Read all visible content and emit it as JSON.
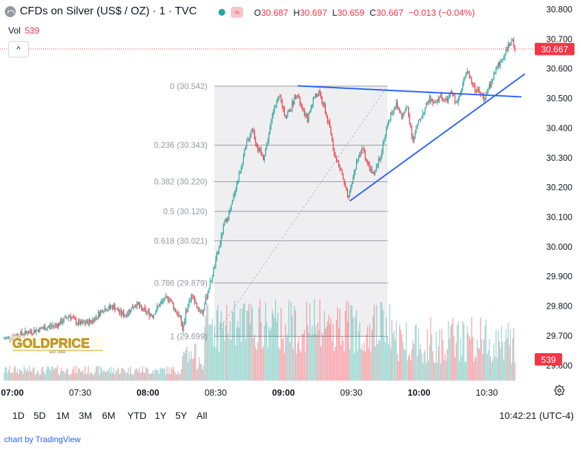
{
  "header": {
    "title": "CFDs on Silver (US$ / OZ) · 1 · TVC",
    "ohlc": [
      {
        "key": "O",
        "value": "30.687"
      },
      {
        "key": "H",
        "value": "30.697"
      },
      {
        "key": "L",
        "value": "30.659"
      },
      {
        "key": "C",
        "value": "30.667"
      }
    ],
    "change": "−0.013 (−0.04%)",
    "badge_icon": "wave-icon"
  },
  "volume": {
    "label": "Vol",
    "value": "539"
  },
  "colors": {
    "up": "#26a69a",
    "down": "#f23645",
    "trendline": "#2962ff",
    "fib": "#787b86"
  },
  "chart_data": {
    "type": "candlestick",
    "y_axis": {
      "ticks": [
        "30.800",
        "30.700",
        "30.600",
        "30.500",
        "30.400",
        "30.300",
        "30.200",
        "30.100",
        "30.000",
        "29.900",
        "29.800",
        "29.700",
        "29.600"
      ],
      "range": [
        29.6,
        30.82
      ],
      "last_price_label": "30.667",
      "volume_label": "539"
    },
    "x_axis": {
      "ticks": [
        {
          "label": "07:00",
          "bold": true
        },
        {
          "label": "07:30",
          "bold": false
        },
        {
          "label": "08:00",
          "bold": true
        },
        {
          "label": "08:30",
          "bold": false
        },
        {
          "label": "09:00",
          "bold": true
        },
        {
          "label": "09:30",
          "bold": false
        },
        {
          "label": "10:00",
          "bold": true
        },
        {
          "label": "10:30",
          "bold": false
        }
      ]
    },
    "fibonacci": [
      {
        "label": "0 (30.542)",
        "price": 30.542
      },
      {
        "label": "0.236 (30.343)",
        "price": 30.343
      },
      {
        "label": "0.382 (30.220)",
        "price": 30.22
      },
      {
        "label": "0.5 (30.120)",
        "price": 30.12
      },
      {
        "label": "0.618 (30.021)",
        "price": 30.021
      },
      {
        "label": "0.786 (29.879)",
        "price": 29.879
      },
      {
        "label": "1 (29.699)",
        "price": 29.699
      }
    ],
    "price_path": [
      [
        0,
        29.69
      ],
      [
        10,
        29.7
      ],
      [
        20,
        29.71
      ],
      [
        30,
        29.72
      ],
      [
        40,
        29.73
      ],
      [
        50,
        29.74
      ],
      [
        60,
        29.77
      ],
      [
        65,
        29.75
      ],
      [
        70,
        29.74
      ],
      [
        80,
        29.75
      ],
      [
        90,
        29.79
      ],
      [
        100,
        29.8
      ],
      [
        105,
        29.78
      ],
      [
        110,
        29.77
      ],
      [
        115,
        29.79
      ],
      [
        120,
        29.81
      ],
      [
        125,
        29.79
      ],
      [
        130,
        29.78
      ],
      [
        135,
        29.77
      ],
      [
        140,
        29.8
      ],
      [
        145,
        29.82
      ],
      [
        150,
        29.83
      ],
      [
        155,
        29.79
      ],
      [
        160,
        29.76
      ],
      [
        162,
        29.72
      ],
      [
        165,
        29.78
      ],
      [
        170,
        29.84
      ],
      [
        175,
        29.8
      ],
      [
        180,
        29.78
      ],
      [
        185,
        29.85
      ],
      [
        190,
        29.92
      ],
      [
        195,
        30.0
      ],
      [
        200,
        30.08
      ],
      [
        205,
        30.12
      ],
      [
        210,
        30.2
      ],
      [
        215,
        30.27
      ],
      [
        220,
        30.35
      ],
      [
        225,
        30.4
      ],
      [
        230,
        30.33
      ],
      [
        235,
        30.3
      ],
      [
        240,
        30.38
      ],
      [
        245,
        30.48
      ],
      [
        250,
        30.5
      ],
      [
        255,
        30.44
      ],
      [
        260,
        30.47
      ],
      [
        265,
        30.52
      ],
      [
        270,
        30.46
      ],
      [
        275,
        30.43
      ],
      [
        280,
        30.5
      ],
      [
        285,
        30.52
      ],
      [
        290,
        30.47
      ],
      [
        295,
        30.4
      ],
      [
        300,
        30.3
      ],
      [
        305,
        30.26
      ],
      [
        310,
        30.18
      ],
      [
        312,
        30.16
      ],
      [
        315,
        30.22
      ],
      [
        320,
        30.3
      ],
      [
        325,
        30.33
      ],
      [
        330,
        30.27
      ],
      [
        335,
        30.24
      ],
      [
        340,
        30.3
      ],
      [
        345,
        30.38
      ],
      [
        350,
        30.45
      ],
      [
        355,
        30.48
      ],
      [
        360,
        30.44
      ],
      [
        365,
        30.47
      ],
      [
        370,
        30.36
      ],
      [
        375,
        30.42
      ],
      [
        380,
        30.46
      ],
      [
        385,
        30.5
      ],
      [
        390,
        30.48
      ],
      [
        395,
        30.51
      ],
      [
        400,
        30.49
      ],
      [
        405,
        30.52
      ],
      [
        410,
        30.48
      ],
      [
        415,
        30.56
      ],
      [
        420,
        30.59
      ],
      [
        425,
        30.54
      ],
      [
        430,
        30.52
      ],
      [
        435,
        30.5
      ],
      [
        440,
        30.55
      ],
      [
        445,
        30.6
      ],
      [
        450,
        30.63
      ],
      [
        455,
        30.67
      ],
      [
        460,
        30.69
      ],
      [
        462,
        30.667
      ]
    ],
    "trendlines": [
      {
        "name": "upper",
        "from": [
          265,
          30.543
        ],
        "to": [
          467,
          30.506
        ]
      },
      {
        "name": "lower",
        "from": [
          312,
          30.155
        ],
        "to": [
          470,
          30.583
        ]
      }
    ],
    "time_range_buttons": [
      "1D",
      "5D",
      "1M",
      "3M",
      "6M",
      "YTD",
      "1Y",
      "5Y",
      "All"
    ],
    "clock": "10:42:21 (UTC-4)"
  },
  "watermark": {
    "brand": "GOLDPRICE",
    "tagline": "EST. 2002"
  },
  "credit": "chart by TradingView"
}
